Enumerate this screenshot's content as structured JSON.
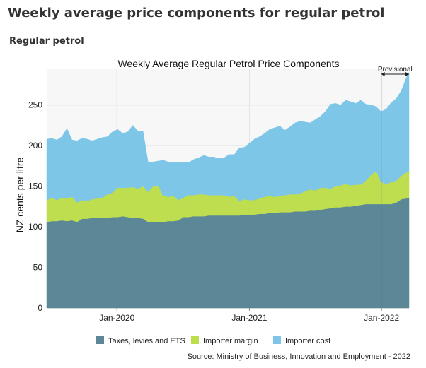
{
  "page": {
    "heading": "Weekly average price components for regular petrol",
    "section": "Regular petrol"
  },
  "chart_data": {
    "type": "area",
    "stacked": true,
    "title": "Weekly Average Regular Petrol Price Components",
    "ylabel": "NZ cents per litre",
    "xlabel": "",
    "ylim": [
      0,
      295
    ],
    "yticks": [
      0,
      50,
      100,
      150,
      200,
      250
    ],
    "xlim": [
      "2019-06-21",
      "2022-03-18"
    ],
    "xticks": [
      {
        "date": "2020-01-01",
        "label": "Jan-2020"
      },
      {
        "date": "2021-01-01",
        "label": "Jan-2021"
      },
      {
        "date": "2022-01-01",
        "label": "Jan-2022"
      }
    ],
    "grid": true,
    "legend_position": "bottom",
    "provisional": {
      "label": "Provisional",
      "from": "2021-12-31"
    },
    "source": "Source: Ministry of Business, Innovation and Employment - 2022",
    "x": [
      "2019-06-21",
      "2019-07-05",
      "2019-07-19",
      "2019-08-02",
      "2019-08-16",
      "2019-08-30",
      "2019-09-13",
      "2019-09-27",
      "2019-10-11",
      "2019-10-25",
      "2019-11-08",
      "2019-11-22",
      "2019-12-06",
      "2019-12-20",
      "2020-01-03",
      "2020-01-17",
      "2020-01-31",
      "2020-02-14",
      "2020-02-28",
      "2020-03-13",
      "2020-03-27",
      "2020-04-10",
      "2020-04-24",
      "2020-05-08",
      "2020-05-22",
      "2020-06-05",
      "2020-06-19",
      "2020-07-03",
      "2020-07-17",
      "2020-07-31",
      "2020-08-14",
      "2020-08-28",
      "2020-09-11",
      "2020-09-25",
      "2020-10-09",
      "2020-10-23",
      "2020-11-06",
      "2020-11-20",
      "2020-12-04",
      "2020-12-18",
      "2021-01-01",
      "2021-01-15",
      "2021-01-29",
      "2021-02-12",
      "2021-02-26",
      "2021-03-12",
      "2021-03-26",
      "2021-04-09",
      "2021-04-23",
      "2021-05-07",
      "2021-05-21",
      "2021-06-04",
      "2021-06-18",
      "2021-07-02",
      "2021-07-16",
      "2021-07-30",
      "2021-08-13",
      "2021-08-27",
      "2021-09-10",
      "2021-09-24",
      "2021-10-08",
      "2021-10-22",
      "2021-11-05",
      "2021-11-19",
      "2021-12-03",
      "2021-12-17",
      "2021-12-31",
      "2022-01-14",
      "2022-01-28",
      "2022-02-11",
      "2022-02-25",
      "2022-03-11",
      "2022-03-18"
    ],
    "series": [
      {
        "name": "Taxes, levies and ETS",
        "color": "#5b8796",
        "values": [
          106,
          107,
          107,
          108,
          107,
          108,
          106,
          110,
          110,
          111,
          111,
          111,
          111,
          112,
          112,
          113,
          112,
          111,
          111,
          110,
          106,
          106,
          106,
          106,
          107,
          107,
          108,
          112,
          112,
          113,
          113,
          113,
          114,
          114,
          114,
          114,
          114,
          114,
          114,
          115,
          115,
          115,
          116,
          116,
          117,
          117,
          118,
          118,
          118,
          119,
          119,
          119,
          120,
          120,
          121,
          122,
          123,
          124,
          124,
          125,
          125,
          126,
          127,
          128,
          128,
          128,
          128,
          128,
          128,
          130,
          134,
          135,
          136
        ]
      },
      {
        "name": "Importer margin",
        "color": "#bedd4f",
        "values": [
          27,
          29,
          26,
          28,
          28,
          29,
          24,
          23,
          22,
          23,
          24,
          25,
          29,
          30,
          36,
          35,
          36,
          38,
          36,
          40,
          37,
          44,
          45,
          32,
          30,
          31,
          25,
          24,
          27,
          26,
          27,
          27,
          25,
          25,
          25,
          25,
          23,
          24,
          18,
          19,
          18,
          18,
          19,
          21,
          21,
          20,
          20,
          21,
          22,
          21,
          22,
          25,
          26,
          25,
          27,
          26,
          24,
          26,
          27,
          28,
          26,
          26,
          25,
          29,
          36,
          41,
          27,
          25,
          27,
          27,
          29,
          32,
          32
        ]
      },
      {
        "name": "Importer cost",
        "color": "#7ec6e8",
        "values": [
          75,
          73,
          74,
          75,
          86,
          70,
          76,
          76,
          76,
          72,
          73,
          74,
          71,
          75,
          72,
          67,
          69,
          76,
          71,
          68,
          37,
          30,
          30,
          44,
          43,
          41,
          46,
          43,
          40,
          44,
          45,
          48,
          47,
          47,
          45,
          46,
          52,
          51,
          65,
          64,
          70,
          75,
          76,
          78,
          82,
          85,
          86,
          80,
          83,
          88,
          89,
          85,
          82,
          87,
          88,
          94,
          104,
          102,
          99,
          103,
          103,
          100,
          104,
          94,
          86,
          79,
          87,
          92,
          98,
          101,
          105,
          117,
          122
        ]
      }
    ]
  }
}
